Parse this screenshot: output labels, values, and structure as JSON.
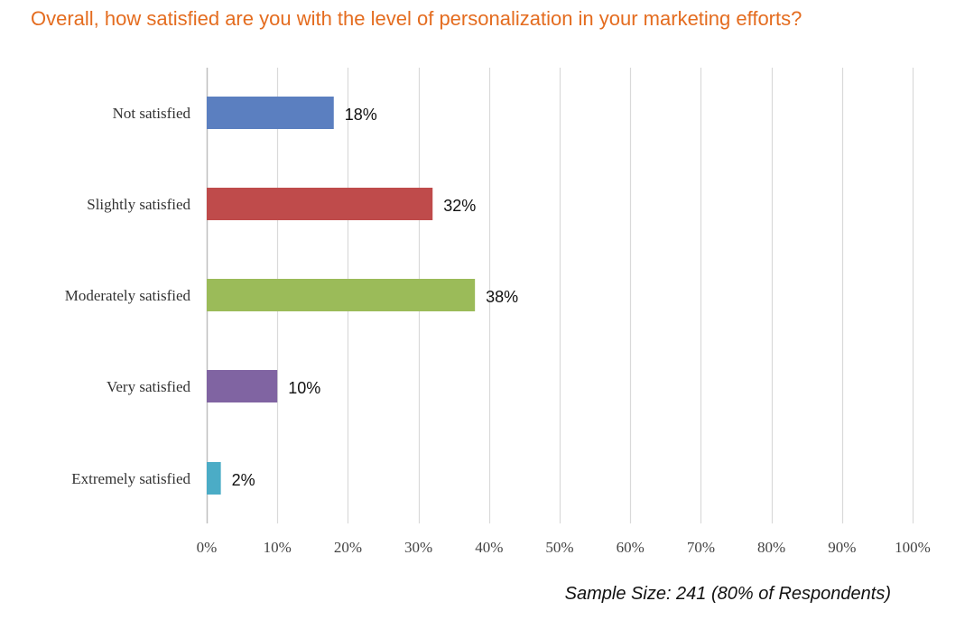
{
  "chart_data": {
    "type": "bar",
    "orientation": "horizontal",
    "title": "Overall, how satisfied are you with the level of personalization in your marketing efforts?",
    "categories": [
      "Not satisfied",
      "Slightly satisfied",
      "Moderately satisfied",
      "Very satisfied",
      "Extremely satisfied"
    ],
    "values": [
      18,
      32,
      38,
      10,
      2
    ],
    "data_labels": [
      "18%",
      "32%",
      "38%",
      "10%",
      "2%"
    ],
    "colors": [
      "#5b7fc0",
      "#bf4b4b",
      "#9bbb59",
      "#8064a2",
      "#4bacc6"
    ],
    "xlim": [
      0,
      100
    ],
    "x_ticks": [
      0,
      10,
      20,
      30,
      40,
      50,
      60,
      70,
      80,
      90,
      100
    ],
    "x_tick_labels": [
      "0%",
      "10%",
      "20%",
      "30%",
      "40%",
      "50%",
      "60%",
      "70%",
      "80%",
      "90%",
      "100%"
    ],
    "grid": "vertical",
    "legend": "none",
    "title_color": "#e46c1f",
    "gridline_color": "#d9d9d9",
    "footnote": "Sample Size: 241 (80% of Respondents)"
  }
}
